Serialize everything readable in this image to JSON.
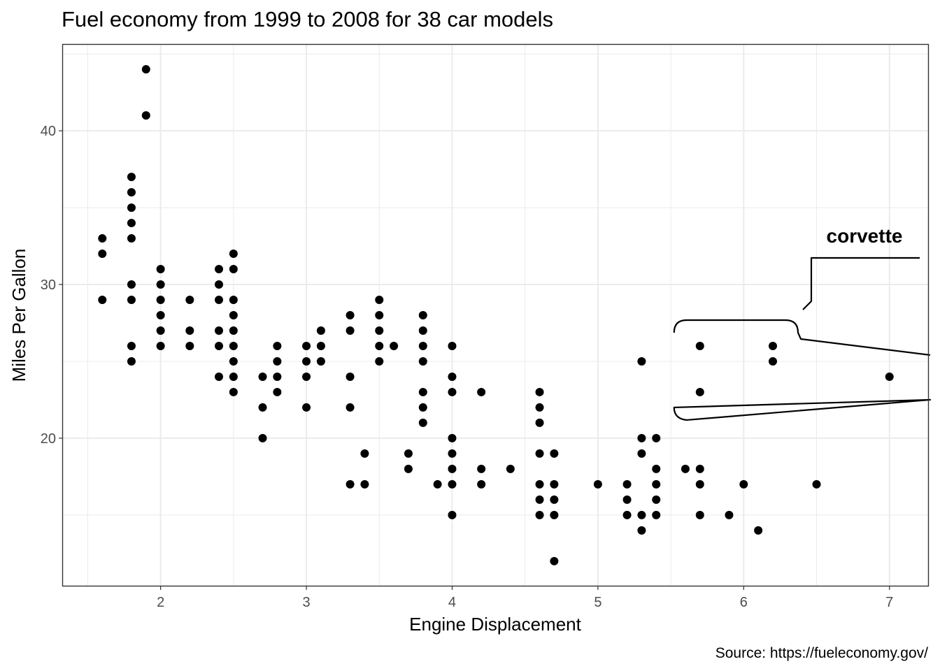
{
  "chart_data": {
    "type": "scatter",
    "title": "Fuel economy from 1999 to 2008 for 38 car models",
    "xlabel": "Engine Displacement",
    "ylabel": "Miles Per Gallon",
    "caption": "Source: https://fueleconomy.gov/",
    "xlim": [
      1.33,
      7.27
    ],
    "ylim": [
      10.4,
      45.6
    ],
    "x_ticks": [
      2,
      3,
      4,
      5,
      6,
      7
    ],
    "y_ticks": [
      20,
      30,
      40
    ],
    "grid": true,
    "point_color": "#000000",
    "annotation": {
      "label": "corvette",
      "points": [
        [
          5.7,
          26
        ],
        [
          5.7,
          23
        ],
        [
          6.2,
          26
        ],
        [
          6.2,
          25
        ],
        [
          7.0,
          24
        ]
      ]
    },
    "points": [
      [
        1.6,
        33
      ],
      [
        1.6,
        32
      ],
      [
        1.6,
        29
      ],
      [
        1.8,
        37
      ],
      [
        1.8,
        36
      ],
      [
        1.8,
        35
      ],
      [
        1.8,
        34
      ],
      [
        1.8,
        33
      ],
      [
        1.8,
        30
      ],
      [
        1.8,
        29
      ],
      [
        1.8,
        26
      ],
      [
        1.8,
        25
      ],
      [
        1.9,
        44
      ],
      [
        1.9,
        41
      ],
      [
        2.0,
        31
      ],
      [
        2.0,
        30
      ],
      [
        2.0,
        29
      ],
      [
        2.0,
        28
      ],
      [
        2.0,
        27
      ],
      [
        2.0,
        26
      ],
      [
        2.2,
        29
      ],
      [
        2.2,
        27
      ],
      [
        2.2,
        26
      ],
      [
        2.4,
        31
      ],
      [
        2.4,
        30
      ],
      [
        2.4,
        29
      ],
      [
        2.4,
        27
      ],
      [
        2.4,
        26
      ],
      [
        2.4,
        24
      ],
      [
        2.5,
        32
      ],
      [
        2.5,
        31
      ],
      [
        2.5,
        29
      ],
      [
        2.5,
        28
      ],
      [
        2.5,
        27
      ],
      [
        2.5,
        26
      ],
      [
        2.5,
        25
      ],
      [
        2.5,
        24
      ],
      [
        2.5,
        23
      ],
      [
        2.7,
        24
      ],
      [
        2.7,
        22
      ],
      [
        2.7,
        20
      ],
      [
        2.8,
        26
      ],
      [
        2.8,
        25
      ],
      [
        2.8,
        24
      ],
      [
        2.8,
        23
      ],
      [
        3.0,
        26
      ],
      [
        3.0,
        25
      ],
      [
        3.0,
        24
      ],
      [
        3.0,
        22
      ],
      [
        3.1,
        27
      ],
      [
        3.1,
        26
      ],
      [
        3.1,
        25
      ],
      [
        3.3,
        28
      ],
      [
        3.3,
        27
      ],
      [
        3.3,
        24
      ],
      [
        3.3,
        22
      ],
      [
        3.3,
        17
      ],
      [
        3.4,
        19
      ],
      [
        3.4,
        17
      ],
      [
        3.5,
        29
      ],
      [
        3.5,
        28
      ],
      [
        3.5,
        27
      ],
      [
        3.5,
        26
      ],
      [
        3.5,
        25
      ],
      [
        3.6,
        26
      ],
      [
        3.7,
        19
      ],
      [
        3.7,
        18
      ],
      [
        3.8,
        28
      ],
      [
        3.8,
        27
      ],
      [
        3.8,
        26
      ],
      [
        3.8,
        25
      ],
      [
        3.8,
        23
      ],
      [
        3.8,
        22
      ],
      [
        3.8,
        21
      ],
      [
        3.9,
        17
      ],
      [
        4.0,
        26
      ],
      [
        4.0,
        24
      ],
      [
        4.0,
        23
      ],
      [
        4.0,
        20
      ],
      [
        4.0,
        19
      ],
      [
        4.0,
        18
      ],
      [
        4.0,
        17
      ],
      [
        4.0,
        15
      ],
      [
        4.2,
        23
      ],
      [
        4.2,
        18
      ],
      [
        4.2,
        17
      ],
      [
        4.4,
        18
      ],
      [
        4.6,
        23
      ],
      [
        4.6,
        22
      ],
      [
        4.6,
        21
      ],
      [
        4.6,
        19
      ],
      [
        4.6,
        17
      ],
      [
        4.6,
        16
      ],
      [
        4.6,
        15
      ],
      [
        4.7,
        19
      ],
      [
        4.7,
        17
      ],
      [
        4.7,
        16
      ],
      [
        4.7,
        15
      ],
      [
        4.7,
        12
      ],
      [
        5.0,
        17
      ],
      [
        5.2,
        17
      ],
      [
        5.2,
        16
      ],
      [
        5.2,
        15
      ],
      [
        5.3,
        25
      ],
      [
        5.3,
        20
      ],
      [
        5.3,
        19
      ],
      [
        5.3,
        15
      ],
      [
        5.3,
        14
      ],
      [
        5.4,
        20
      ],
      [
        5.4,
        18
      ],
      [
        5.4,
        17
      ],
      [
        5.4,
        16
      ],
      [
        5.4,
        15
      ],
      [
        5.6,
        18
      ],
      [
        5.7,
        26
      ],
      [
        5.7,
        23
      ],
      [
        5.7,
        18
      ],
      [
        5.7,
        17
      ],
      [
        5.7,
        15
      ],
      [
        5.9,
        15
      ],
      [
        6.0,
        17
      ],
      [
        6.1,
        14
      ],
      [
        6.2,
        26
      ],
      [
        6.2,
        25
      ],
      [
        6.5,
        17
      ],
      [
        7.0,
        24
      ]
    ]
  }
}
